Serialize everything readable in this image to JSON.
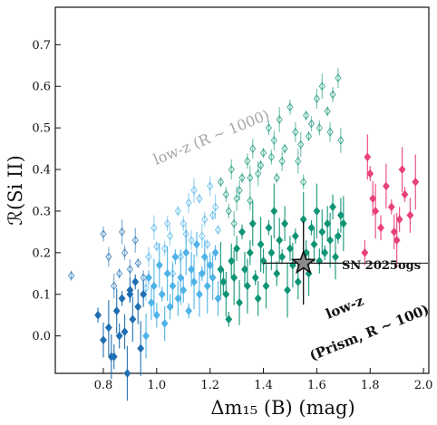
{
  "chart_data": {
    "type": "scatter",
    "xlabel": "Δm₁₅ (B) (mag)",
    "ylabel": "ℛ(Si II)",
    "xlim": [
      0.62,
      2.02
    ],
    "ylim": [
      -0.09,
      0.79
    ],
    "xticks": [
      "0.8",
      "1.0",
      "1.2",
      "1.4",
      "1.6",
      "1.8",
      "2.0"
    ],
    "yticks": [
      "0.0",
      "0.1",
      "0.2",
      "0.3",
      "0.4",
      "0.5",
      "0.6",
      "0.7"
    ],
    "grid": false,
    "colors": {
      "dark_blue": "#1f6fb2",
      "light_blue": "#4fb3e8",
      "teal": "#0f9475",
      "pink": "#e8407a",
      "highlight_star": "#8a8a8a"
    },
    "annotations": {
      "lowres_label": "low-z (R ~ 1000)",
      "prism_label_line1": "low-z",
      "prism_label_line2": "(Prism, R ~ 100)",
      "highlight_label": "SN 2025ogs"
    },
    "highlight": {
      "name": "SN 2025ogs",
      "x": 1.55,
      "y": 0.175,
      "xerr": 0.15,
      "yerr": 0.1
    },
    "series": [
      {
        "name": "low-z (R ~ 1000)",
        "marker": "open-diamond",
        "points": [
          [
            0.68,
            0.145
          ],
          [
            0.8,
            0.245
          ],
          [
            0.82,
            0.19
          ],
          [
            0.84,
            0.12
          ],
          [
            0.86,
            0.15
          ],
          [
            0.88,
            0.2
          ],
          [
            0.9,
            0.16
          ],
          [
            0.92,
            0.23
          ],
          [
            0.93,
            0.175
          ],
          [
            0.95,
            0.14
          ],
          [
            0.97,
            0.19
          ],
          [
            0.99,
            0.26
          ],
          [
            1.01,
            0.17
          ],
          [
            1.03,
            0.21
          ],
          [
            1.05,
            0.24
          ],
          [
            1.06,
            0.15
          ],
          [
            1.08,
            0.3
          ],
          [
            1.1,
            0.27
          ],
          [
            1.12,
            0.32
          ],
          [
            1.14,
            0.35
          ],
          [
            1.16,
            0.33
          ],
          [
            1.18,
            0.28
          ],
          [
            1.2,
            0.36
          ],
          [
            1.22,
            0.31
          ],
          [
            1.24,
            0.37
          ],
          [
            1.26,
            0.34
          ],
          [
            1.28,
            0.4
          ],
          [
            1.3,
            0.33
          ],
          [
            1.32,
            0.38
          ],
          [
            1.34,
            0.42
          ],
          [
            1.36,
            0.45
          ],
          [
            1.38,
            0.39
          ],
          [
            1.4,
            0.44
          ],
          [
            1.42,
            0.5
          ],
          [
            1.44,
            0.47
          ],
          [
            1.46,
            0.52
          ],
          [
            1.48,
            0.45
          ],
          [
            1.5,
            0.55
          ],
          [
            1.52,
            0.49
          ],
          [
            1.54,
            0.46
          ],
          [
            1.56,
            0.53
          ],
          [
            1.58,
            0.51
          ],
          [
            1.6,
            0.57
          ],
          [
            1.62,
            0.6
          ],
          [
            1.64,
            0.54
          ],
          [
            1.66,
            0.58
          ],
          [
            1.68,
            0.62
          ],
          [
            0.96,
            0.115
          ],
          [
            1.0,
            0.215
          ],
          [
            1.04,
            0.27
          ],
          [
            1.13,
            0.23
          ],
          [
            1.17,
            0.24
          ],
          [
            1.21,
            0.29
          ],
          [
            1.27,
            0.3
          ],
          [
            1.31,
            0.35
          ],
          [
            1.35,
            0.38
          ],
          [
            1.39,
            0.41
          ],
          [
            1.43,
            0.43
          ],
          [
            1.47,
            0.42
          ],
          [
            1.53,
            0.42
          ],
          [
            1.57,
            0.48
          ],
          [
            1.61,
            0.5
          ],
          [
            1.65,
            0.49
          ],
          [
            1.69,
            0.47
          ],
          [
            1.45,
            0.38
          ],
          [
            1.55,
            0.37
          ],
          [
            1.35,
            0.325
          ],
          [
            1.29,
            0.27
          ],
          [
            1.19,
            0.22
          ],
          [
            1.09,
            0.19
          ],
          [
            1.11,
            0.245
          ],
          [
            0.87,
            0.25
          ],
          [
            1.23,
            0.255
          ]
        ]
      },
      {
        "name": "low-z (Prism, R ~ 100)",
        "marker": "filled-diamond",
        "points": [
          [
            0.78,
            0.05
          ],
          [
            0.8,
            -0.01
          ],
          [
            0.82,
            0.02
          ],
          [
            0.84,
            -0.05
          ],
          [
            0.85,
            0.06
          ],
          [
            0.87,
            0.09
          ],
          [
            0.88,
            0.01
          ],
          [
            0.89,
            -0.09
          ],
          [
            0.9,
            0.11
          ],
          [
            0.91,
            0.04
          ],
          [
            0.92,
            0.13
          ],
          [
            0.93,
            0.07
          ],
          [
            0.94,
            -0.03
          ],
          [
            0.95,
            0.1
          ],
          [
            0.96,
            0.0
          ],
          [
            0.97,
            0.14
          ],
          [
            0.98,
            0.08
          ],
          [
            0.99,
            0.12
          ],
          [
            1.0,
            0.05
          ],
          [
            1.01,
            0.17
          ],
          [
            1.02,
            0.1
          ],
          [
            1.03,
            0.03
          ],
          [
            1.04,
            0.15
          ],
          [
            1.05,
            0.07
          ],
          [
            1.06,
            0.12
          ],
          [
            1.07,
            0.19
          ],
          [
            1.08,
            0.09
          ],
          [
            1.09,
            0.14
          ],
          [
            1.1,
            0.11
          ],
          [
            1.11,
            0.2
          ],
          [
            1.12,
            0.06
          ],
          [
            1.13,
            0.16
          ],
          [
            1.14,
            0.13
          ],
          [
            1.15,
            0.22
          ],
          [
            1.16,
            0.1
          ],
          [
            1.17,
            0.15
          ],
          [
            1.18,
            0.19
          ],
          [
            1.19,
            0.12
          ],
          [
            1.2,
            0.17
          ],
          [
            1.21,
            0.14
          ],
          [
            1.22,
            0.2
          ],
          [
            1.23,
            0.09
          ],
          [
            1.24,
            0.16
          ],
          [
            1.25,
            0.13
          ],
          [
            1.26,
            0.1
          ],
          [
            1.27,
            0.04
          ],
          [
            1.28,
            0.18
          ],
          [
            1.29,
            0.14
          ],
          [
            1.3,
            0.21
          ],
          [
            1.31,
            0.08
          ],
          [
            1.32,
            0.25
          ],
          [
            1.33,
            0.16
          ],
          [
            1.34,
            0.12
          ],
          [
            1.35,
            0.2
          ],
          [
            1.36,
            0.27
          ],
          [
            1.37,
            0.14
          ],
          [
            1.38,
            0.09
          ],
          [
            1.39,
            0.22
          ],
          [
            1.4,
            0.18
          ],
          [
            1.41,
            0.12
          ],
          [
            1.42,
            0.26
          ],
          [
            1.43,
            0.2
          ],
          [
            1.44,
            0.3
          ],
          [
            1.45,
            0.15
          ],
          [
            1.46,
            0.23
          ],
          [
            1.47,
            0.19
          ],
          [
            1.48,
            0.27
          ],
          [
            1.49,
            0.11
          ],
          [
            1.5,
            0.21
          ],
          [
            1.51,
            0.17
          ],
          [
            1.52,
            0.24
          ],
          [
            1.53,
            0.13
          ],
          [
            1.55,
            0.28
          ],
          [
            1.56,
            0.2
          ],
          [
            1.57,
            0.15
          ],
          [
            1.58,
            0.26
          ],
          [
            1.59,
            0.22
          ],
          [
            1.6,
            0.3
          ],
          [
            1.61,
            0.18
          ],
          [
            1.62,
            0.25
          ],
          [
            1.63,
            0.2
          ],
          [
            1.64,
            0.27
          ],
          [
            1.65,
            0.23
          ],
          [
            1.66,
            0.31
          ],
          [
            1.67,
            0.19
          ],
          [
            1.68,
            0.24
          ],
          [
            1.69,
            0.29
          ],
          [
            1.7,
            0.27
          ],
          [
            1.78,
            0.2
          ],
          [
            1.79,
            0.43
          ],
          [
            1.8,
            0.39
          ],
          [
            1.81,
            0.33
          ],
          [
            1.82,
            0.3
          ],
          [
            1.84,
            0.26
          ],
          [
            1.86,
            0.36
          ],
          [
            1.88,
            0.31
          ],
          [
            1.89,
            0.25
          ],
          [
            1.9,
            0.23
          ],
          [
            1.91,
            0.28
          ],
          [
            1.92,
            0.4
          ],
          [
            1.93,
            0.34
          ],
          [
            1.95,
            0.29
          ],
          [
            1.97,
            0.37
          ],
          [
            0.86,
            0.0
          ],
          [
            0.83,
            -0.05
          ],
          [
            0.9,
            0.1
          ]
        ]
      }
    ]
  }
}
